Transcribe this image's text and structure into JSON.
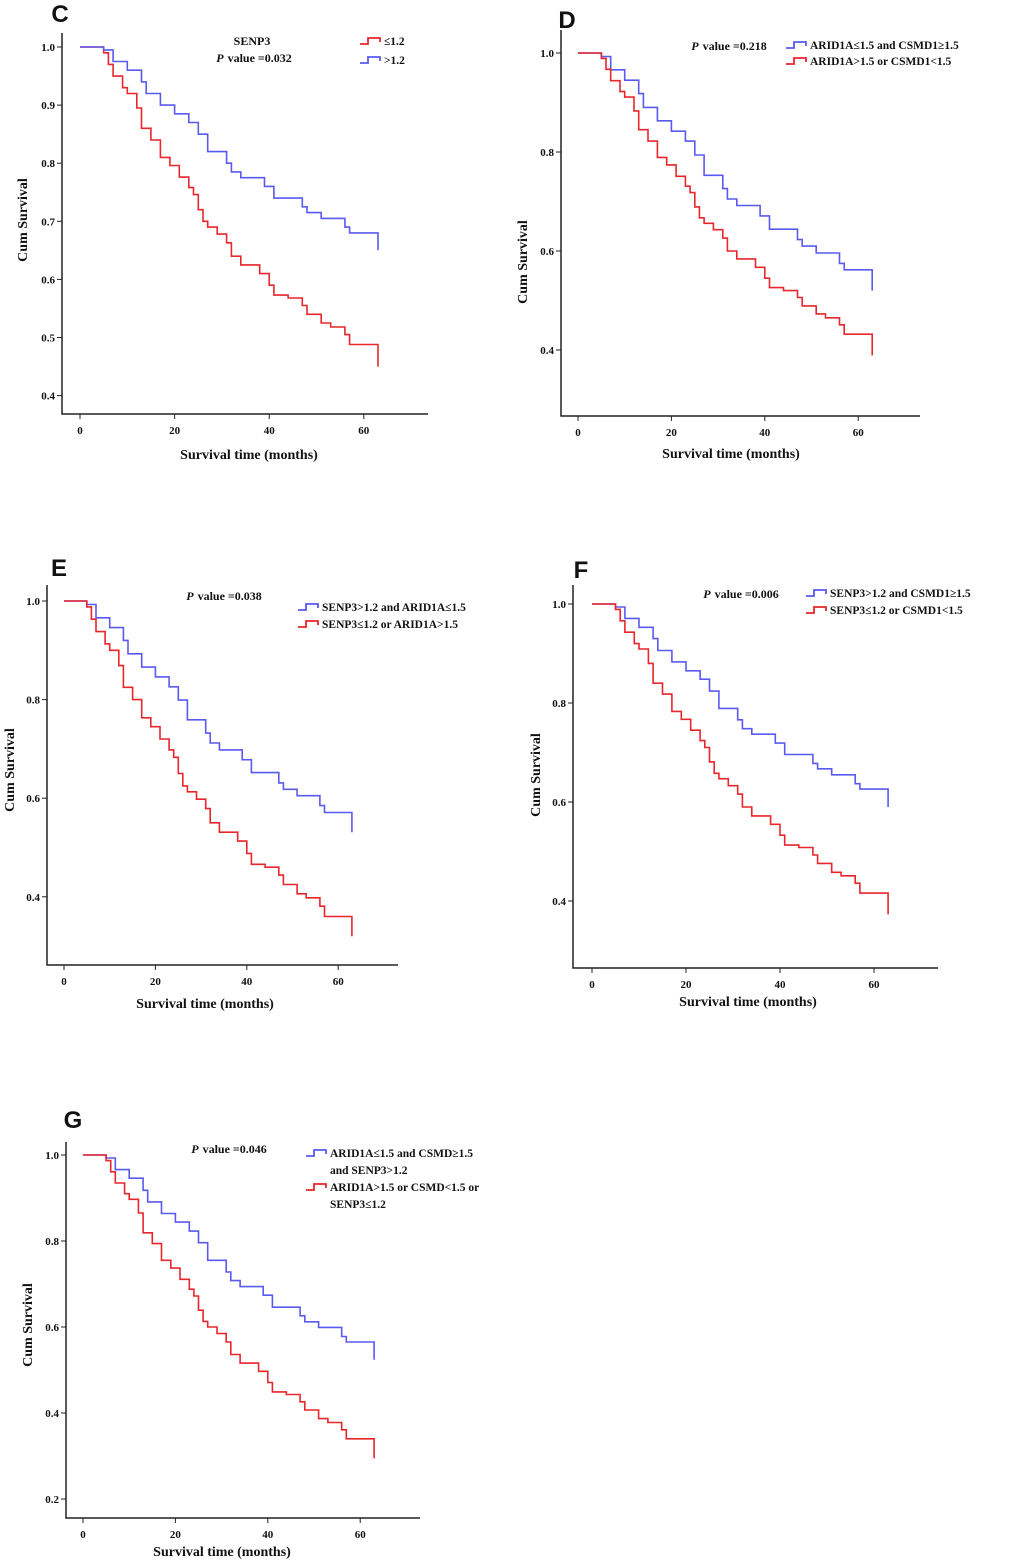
{
  "chart_data": [
    {
      "type": "line",
      "panel_label": "C",
      "title": "SENP3",
      "p_italic": "P",
      "p_text": "value =0.032",
      "xlabel": "Survival time (months)",
      "ylabel": "Cum Survival",
      "xlim": [
        0,
        70
      ],
      "ylim": [
        0.37,
        1.03
      ],
      "xticks": [
        "0",
        "20",
        "40",
        "60"
      ],
      "yticks": [
        "0.4",
        "0.5",
        "0.6",
        "0.7",
        "0.8",
        "0.9",
        "1.0"
      ],
      "series": [
        {
          "name": "≤1.2",
          "legend_lines": [
            "≤1.2"
          ],
          "color": "#e8262b",
          "t": [
            0,
            5,
            6,
            7,
            9,
            10,
            12,
            13,
            15,
            17,
            19,
            21,
            23,
            24,
            25,
            26,
            27,
            29,
            31,
            32,
            34,
            38,
            40,
            41,
            44,
            47,
            48,
            51,
            53,
            56,
            57,
            63
          ],
          "s": [
            1,
            0.99,
            0.97,
            0.95,
            0.93,
            0.92,
            0.895,
            0.86,
            0.84,
            0.81,
            0.796,
            0.776,
            0.758,
            0.746,
            0.72,
            0.7,
            0.69,
            0.678,
            0.663,
            0.64,
            0.625,
            0.61,
            0.59,
            0.573,
            0.568,
            0.555,
            0.54,
            0.525,
            0.518,
            0.505,
            0.488,
            0.45
          ]
        },
        {
          "name": ">1.2",
          "legend_lines": [
            ">1.2"
          ],
          "color": "#5a5af0",
          "t": [
            0,
            5,
            7,
            10,
            13,
            14,
            17,
            20,
            23,
            25,
            27,
            31,
            32,
            34,
            39,
            41,
            47,
            48,
            51,
            56,
            57,
            63
          ],
          "s": [
            1,
            0.995,
            0.975,
            0.96,
            0.94,
            0.92,
            0.9,
            0.885,
            0.87,
            0.85,
            0.82,
            0.8,
            0.785,
            0.775,
            0.76,
            0.74,
            0.725,
            0.715,
            0.705,
            0.69,
            0.68,
            0.65
          ]
        }
      ]
    },
    {
      "type": "line",
      "panel_label": "D",
      "p_italic": "P",
      "p_text": "value =0.218",
      "xlabel": "Survival time (months)",
      "ylabel": "Cum Survival",
      "xlim": [
        0,
        70
      ],
      "ylim": [
        0.265,
        1.05
      ],
      "xticks": [
        "0",
        "20",
        "40",
        "60"
      ],
      "yticks": [
        "0.4",
        "0.6",
        "0.8",
        "1.0"
      ],
      "series": [
        {
          "name": "ARID1A≤1.5 and CSMD1≥1.5",
          "legend_lines": [
            "ARID1A≤1.5 and CSMD1≥1.5"
          ],
          "color": "#5a5af0",
          "t": [
            0,
            5,
            7,
            10,
            13,
            14,
            17,
            20,
            23,
            25,
            27,
            31,
            32,
            34,
            39,
            41,
            47,
            48,
            51,
            56,
            57,
            63
          ],
          "s": [
            1,
            0.993,
            0.966,
            0.945,
            0.918,
            0.89,
            0.863,
            0.842,
            0.822,
            0.794,
            0.753,
            0.726,
            0.705,
            0.692,
            0.671,
            0.644,
            0.623,
            0.61,
            0.596,
            0.575,
            0.562,
            0.52
          ]
        },
        {
          "name": "ARID1A>1.5 or CSMD1<1.5",
          "legend_lines": [
            "ARID1A>1.5 or CSMD1<1.5"
          ],
          "color": "#e8262b",
          "t": [
            0,
            5,
            6,
            7,
            9,
            10,
            12,
            13,
            15,
            17,
            19,
            21,
            23,
            24,
            25,
            26,
            27,
            29,
            31,
            32,
            34,
            38,
            40,
            41,
            44,
            47,
            48,
            51,
            53,
            56,
            57,
            63
          ],
          "s": [
            1,
            0.989,
            0.967,
            0.944,
            0.922,
            0.911,
            0.883,
            0.845,
            0.822,
            0.789,
            0.774,
            0.751,
            0.731,
            0.718,
            0.689,
            0.667,
            0.656,
            0.643,
            0.626,
            0.6,
            0.584,
            0.567,
            0.545,
            0.526,
            0.52,
            0.506,
            0.489,
            0.473,
            0.465,
            0.451,
            0.432,
            0.389
          ]
        }
      ]
    },
    {
      "type": "line",
      "panel_label": "E",
      "p_italic": "P",
      "p_text": "value =0.038",
      "xlabel": "Survival time (months)",
      "ylabel": "Cum Survival",
      "xlim": [
        0,
        70
      ],
      "ylim": [
        0.27,
        1.03
      ],
      "xticks": [
        "0",
        "20",
        "40",
        "60"
      ],
      "yticks": [
        "0.4",
        "0.6",
        "0.8",
        "1.0"
      ],
      "series": [
        {
          "name": "SENP3>1.2 and ARID1A≤1.5",
          "legend_lines": [
            "SENP3>1.2 and ARID1A≤1.5"
          ],
          "color": "#5a5af0",
          "t": [
            0,
            5,
            7,
            10,
            13,
            14,
            17,
            20,
            23,
            25,
            27,
            31,
            32,
            34,
            39,
            41,
            47,
            48,
            51,
            56,
            57,
            63
          ],
          "s": [
            1,
            0.993,
            0.966,
            0.946,
            0.92,
            0.893,
            0.866,
            0.846,
            0.826,
            0.799,
            0.759,
            0.732,
            0.712,
            0.698,
            0.678,
            0.652,
            0.631,
            0.618,
            0.605,
            0.585,
            0.571,
            0.531
          ]
        },
        {
          "name": "SENP3≤1.2 or ARID1A>1.5",
          "legend_lines": [
            "SENP3≤1.2  or ARID1A>1.5"
          ],
          "color": "#e8262b",
          "t": [
            0,
            5,
            6,
            7,
            9,
            10,
            12,
            13,
            15,
            17,
            19,
            21,
            23,
            24,
            25,
            26,
            27,
            29,
            31,
            32,
            34,
            38,
            40,
            41,
            44,
            47,
            48,
            51,
            53,
            56,
            57,
            63
          ],
          "s": [
            1,
            0.988,
            0.963,
            0.938,
            0.913,
            0.9,
            0.869,
            0.825,
            0.8,
            0.763,
            0.745,
            0.72,
            0.698,
            0.683,
            0.65,
            0.625,
            0.613,
            0.598,
            0.579,
            0.55,
            0.531,
            0.513,
            0.488,
            0.466,
            0.46,
            0.444,
            0.425,
            0.406,
            0.398,
            0.381,
            0.36,
            0.32
          ]
        }
      ]
    },
    {
      "type": "line",
      "panel_label": "F",
      "p_italic": "P",
      "p_text": "value =0.006",
      "xlabel": "Survival time (months)",
      "ylabel": "Cum Survival",
      "xlim": [
        0,
        70
      ],
      "ylim": [
        0.27,
        1.04
      ],
      "xticks": [
        "0",
        "20",
        "40",
        "60"
      ],
      "yticks": [
        "0.4",
        "0.6",
        "0.8",
        "1.0"
      ],
      "series": [
        {
          "name": "SENP3>1.2 and CSMD1≥1.5",
          "legend_lines": [
            "SENP3>1.2 and CSMD1≥1.5"
          ],
          "color": "#5a5af0",
          "t": [
            0,
            5,
            7,
            10,
            13,
            14,
            17,
            20,
            23,
            25,
            27,
            31,
            32,
            34,
            39,
            41,
            47,
            48,
            51,
            56,
            57,
            63
          ],
          "s": [
            1,
            0.994,
            0.971,
            0.953,
            0.93,
            0.906,
            0.883,
            0.865,
            0.848,
            0.824,
            0.789,
            0.766,
            0.748,
            0.737,
            0.719,
            0.696,
            0.678,
            0.667,
            0.655,
            0.637,
            0.626,
            0.59
          ]
        },
        {
          "name": "SENP3≤1.2 or CSMD1<1.5",
          "legend_lines": [
            "SENP3≤1.2 or CSMD1<1.5"
          ],
          "color": "#e8262b",
          "t": [
            0,
            5,
            6,
            7,
            9,
            10,
            12,
            13,
            15,
            17,
            19,
            21,
            23,
            24,
            25,
            26,
            27,
            29,
            31,
            32,
            34,
            38,
            40,
            41,
            44,
            47,
            48,
            51,
            53,
            56,
            57,
            63
          ],
          "s": [
            1,
            0.989,
            0.966,
            0.943,
            0.92,
            0.909,
            0.88,
            0.84,
            0.818,
            0.783,
            0.767,
            0.745,
            0.724,
            0.71,
            0.681,
            0.658,
            0.647,
            0.633,
            0.616,
            0.59,
            0.572,
            0.555,
            0.533,
            0.513,
            0.508,
            0.493,
            0.476,
            0.458,
            0.451,
            0.436,
            0.416,
            0.373
          ]
        }
      ]
    },
    {
      "type": "line",
      "panel_label": "G",
      "p_italic": "P",
      "p_text": "value =0.046",
      "xlabel": "Survival time (months)",
      "ylabel": "Cum Survival",
      "xlim": [
        0,
        70
      ],
      "ylim": [
        0.16,
        1.03
      ],
      "xticks": [
        "0",
        "20",
        "40",
        "60"
      ],
      "yticks": [
        "0.2",
        "0.4",
        "0.6",
        "0.8",
        "1.0"
      ],
      "series": [
        {
          "name": "ARID1A≤1.5 and CSMD≥1.5 and SENP3>1.2",
          "legend_lines": [
            "ARID1A≤1.5 and CSMD≥1.5",
            "and SENP3>1.2"
          ],
          "color": "#5a5af0",
          "t": [
            0,
            5,
            7,
            10,
            13,
            14,
            17,
            20,
            23,
            25,
            27,
            31,
            32,
            34,
            39,
            41,
            47,
            48,
            51,
            56,
            57,
            63
          ],
          "s": [
            1,
            0.993,
            0.966,
            0.946,
            0.918,
            0.891,
            0.864,
            0.844,
            0.823,
            0.796,
            0.755,
            0.728,
            0.708,
            0.694,
            0.674,
            0.646,
            0.626,
            0.612,
            0.599,
            0.578,
            0.565,
            0.524
          ]
        },
        {
          "name": "ARID1A>1.5 or CSMD<1.5 or SENP3≤1.2",
          "legend_lines": [
            "ARID1A>1.5 or CSMD<1.5 or",
            "SENP3≤1.2"
          ],
          "color": "#e8262b",
          "t": [
            0,
            5,
            6,
            7,
            9,
            10,
            12,
            13,
            15,
            17,
            19,
            21,
            23,
            24,
            25,
            26,
            27,
            29,
            31,
            32,
            34,
            38,
            40,
            41,
            44,
            47,
            48,
            51,
            53,
            56,
            57,
            63
          ],
          "s": [
            1,
            0.987,
            0.961,
            0.935,
            0.91,
            0.897,
            0.865,
            0.819,
            0.794,
            0.755,
            0.737,
            0.711,
            0.688,
            0.672,
            0.639,
            0.613,
            0.6,
            0.585,
            0.565,
            0.536,
            0.516,
            0.497,
            0.471,
            0.449,
            0.443,
            0.426,
            0.407,
            0.387,
            0.378,
            0.361,
            0.34,
            0.295
          ]
        }
      ]
    }
  ]
}
